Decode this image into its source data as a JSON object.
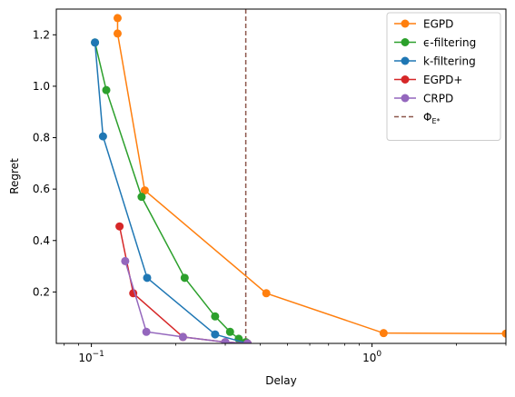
{
  "chart_data": {
    "type": "line",
    "title": "",
    "xlabel": "Delay",
    "ylabel": "Regret",
    "xscale": "log",
    "xlim": [
      0.075,
      3.0
    ],
    "ylim": [
      0.0,
      1.3
    ],
    "grid": false,
    "legend_position": "upper right",
    "x_ticks": [
      {
        "value": 0.1,
        "base": "10",
        "exp": "−1"
      },
      {
        "value": 1.0,
        "base": "10",
        "exp": "0"
      }
    ],
    "y_ticks": [
      "0.2",
      "0.4",
      "0.6",
      "0.8",
      "1.0",
      "1.2"
    ],
    "series": [
      {
        "name": "EGPD",
        "color": "#ff7f0e",
        "x": [
          0.124,
          0.124,
          0.155,
          0.42,
          1.1,
          3.0
        ],
        "y": [
          1.265,
          1.205,
          0.595,
          0.195,
          0.04,
          0.038
        ]
      },
      {
        "name": "ϵ-filtering",
        "color": "#2ca02c",
        "x": [
          0.103,
          0.113,
          0.151,
          0.215,
          0.276,
          0.312,
          0.335,
          0.355
        ],
        "y": [
          1.17,
          0.985,
          0.57,
          0.255,
          0.105,
          0.045,
          0.018,
          0.005
        ]
      },
      {
        "name": "k-filtering",
        "color": "#1f77b4",
        "x": [
          0.103,
          0.11,
          0.158,
          0.276,
          0.36
        ],
        "y": [
          1.17,
          0.805,
          0.255,
          0.035,
          0.0
        ]
      },
      {
        "name": "EGPD+",
        "color": "#d62728",
        "x": [
          0.126,
          0.141,
          0.212,
          0.3,
          0.36
        ],
        "y": [
          0.455,
          0.195,
          0.025,
          0.005,
          0.0
        ]
      },
      {
        "name": "CRPD",
        "color": "#9467bd",
        "x": [
          0.132,
          0.157,
          0.212,
          0.3,
          0.36
        ],
        "y": [
          0.32,
          0.045,
          0.025,
          0.005,
          0.0
        ]
      }
    ],
    "vline": {
      "x": 0.355,
      "color": "#8c564b",
      "label_main": "Φ",
      "label_sub": "E*"
    }
  }
}
